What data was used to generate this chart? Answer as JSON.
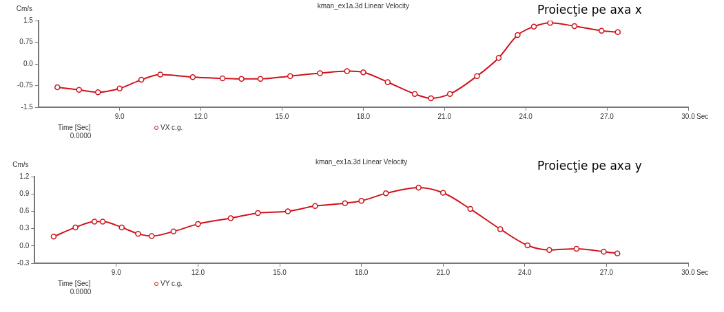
{
  "chart_data": [
    {
      "type": "line",
      "title": "kman_ex1a.3d Linear Velocity",
      "subtitle": "Proiecţie pe axa x",
      "xlabel": "Sec",
      "ylabel": "Cm/s",
      "annotations": [
        "Time [Sec]",
        "0.0000"
      ],
      "xlim": [
        6,
        30
      ],
      "xticks": [
        {
          "value": 9,
          "label": "9.0"
        },
        {
          "value": 12,
          "label": "12.0"
        },
        {
          "value": 15,
          "label": "15.0"
        },
        {
          "value": 18,
          "label": "18.0"
        },
        {
          "value": 21,
          "label": "21.0"
        },
        {
          "value": 24,
          "label": "24.0"
        },
        {
          "value": 27,
          "label": "27.0"
        },
        {
          "value": 30,
          "label": "30.0"
        }
      ],
      "ylim": [
        -1.5,
        1.5
      ],
      "yticks": [
        -1.5,
        -0.75,
        {
          "value": 0,
          "label": "0.0"
        },
        0.75,
        1.5
      ],
      "grid": false,
      "legend": "bottom left",
      "marker": "circle",
      "series": [
        {
          "name": "VX c.g.",
          "color": "#d0121b",
          "x": [
            6.7,
            7.5,
            8.2,
            9.0,
            9.8,
            10.5,
            11.7,
            12.8,
            13.5,
            14.2,
            15.3,
            16.4,
            17.4,
            18.0,
            18.9,
            19.9,
            20.5,
            21.2,
            22.2,
            23.0,
            23.7,
            24.3,
            24.9,
            25.8,
            26.8,
            27.4
          ],
          "values": [
            -0.81,
            -0.9,
            -0.98,
            -0.85,
            -0.55,
            -0.37,
            -0.46,
            -0.5,
            -0.52,
            -0.52,
            -0.42,
            -0.32,
            -0.25,
            -0.29,
            -0.63,
            -1.04,
            -1.19,
            -1.04,
            -0.42,
            0.21,
            1.0,
            1.29,
            1.42,
            1.31,
            1.15,
            1.1
          ]
        }
      ]
    },
    {
      "type": "line",
      "title": "kman_ex1a.3d Linear Velocity",
      "subtitle": "Proiecţie pe axa y",
      "xlabel": "Sec",
      "ylabel": "Cm/s",
      "annotations": [
        "Time [Sec]",
        "0.0000"
      ],
      "xlim": [
        6,
        30
      ],
      "xticks": [
        {
          "value": 9,
          "label": "9.0"
        },
        {
          "value": 12,
          "label": "12.0"
        },
        {
          "value": 15,
          "label": "15.0"
        },
        {
          "value": 18,
          "label": "18.0"
        },
        {
          "value": 21,
          "label": "21.0"
        },
        {
          "value": 24,
          "label": "24.0"
        },
        {
          "value": 27,
          "label": "27.0"
        },
        {
          "value": 30,
          "label": "30.0"
        }
      ],
      "ylim": [
        -0.3,
        1.2
      ],
      "yticks": [
        -0.3,
        {
          "value": 0,
          "label": "0.0"
        },
        0.3,
        0.6,
        0.9,
        1.2
      ],
      "grid": false,
      "legend": "bottom left",
      "marker": "circle",
      "series": [
        {
          "name": "VY c.g.",
          "color": "#d0121b",
          "x": [
            6.7,
            7.5,
            8.2,
            8.5,
            9.2,
            9.8,
            10.3,
            11.1,
            12.0,
            13.2,
            14.2,
            15.3,
            16.3,
            17.4,
            18.0,
            18.9,
            20.1,
            21.0,
            22.0,
            23.1,
            24.1,
            24.9,
            25.9,
            26.9,
            27.4
          ],
          "values": [
            0.16,
            0.32,
            0.42,
            0.42,
            0.32,
            0.21,
            0.17,
            0.25,
            0.38,
            0.48,
            0.57,
            0.6,
            0.69,
            0.74,
            0.78,
            0.91,
            1.01,
            0.92,
            0.64,
            0.29,
            0.01,
            -0.07,
            -0.05,
            -0.1,
            -0.13
          ]
        }
      ]
    }
  ]
}
